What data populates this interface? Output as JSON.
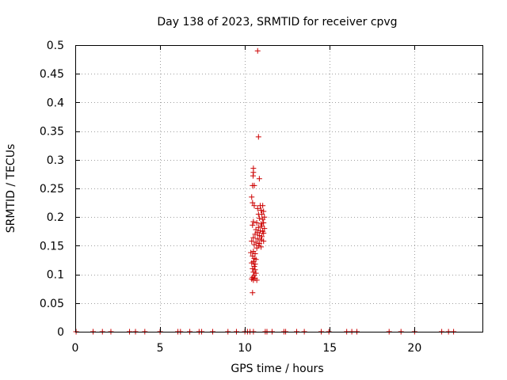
{
  "chart_data": {
    "type": "scatter",
    "title": "Day 138 of 2023, SRMTID for receiver cpvg",
    "xlabel": "GPS time / hours",
    "ylabel": "SRMTID / TECUs",
    "xlim": [
      0,
      24
    ],
    "ylim": [
      0,
      0.5
    ],
    "grid": true,
    "marker": "+",
    "color": "#cc0000",
    "x_ticks": [
      0,
      5,
      10,
      15,
      20
    ],
    "x_tick_labels": [
      "0",
      "5",
      "10",
      "15",
      "20"
    ],
    "y_ticks": [
      0,
      0.05,
      0.1,
      0.15,
      0.2,
      0.25,
      0.3,
      0.35,
      0.4,
      0.45,
      0.5
    ],
    "y_tick_labels": [
      "0",
      "0.05",
      "0.1",
      "0.15",
      "0.2",
      "0.25",
      "0.3",
      "0.35",
      "0.4",
      "0.45",
      "0.5"
    ],
    "series": [
      {
        "name": "SRMTID",
        "points": [
          [
            0.05,
            0
          ],
          [
            1.05,
            0
          ],
          [
            1.6,
            0
          ],
          [
            2.1,
            0
          ],
          [
            3.2,
            0
          ],
          [
            3.55,
            0
          ],
          [
            4.1,
            0
          ],
          [
            5.0,
            0
          ],
          [
            6.05,
            0
          ],
          [
            6.2,
            0
          ],
          [
            6.75,
            0
          ],
          [
            7.3,
            0
          ],
          [
            7.45,
            0
          ],
          [
            8.1,
            0
          ],
          [
            9.0,
            0
          ],
          [
            9.5,
            0
          ],
          [
            10.0,
            0
          ],
          [
            10.15,
            0
          ],
          [
            10.3,
            0
          ],
          [
            10.5,
            0
          ],
          [
            11.2,
            0
          ],
          [
            11.3,
            0
          ],
          [
            11.6,
            0
          ],
          [
            12.3,
            0
          ],
          [
            12.4,
            0
          ],
          [
            13.05,
            0
          ],
          [
            13.5,
            0
          ],
          [
            14.5,
            0
          ],
          [
            14.95,
            0
          ],
          [
            16.0,
            0
          ],
          [
            16.3,
            0
          ],
          [
            16.6,
            0
          ],
          [
            18.5,
            0
          ],
          [
            19.2,
            0
          ],
          [
            20.0,
            0
          ],
          [
            21.6,
            0
          ],
          [
            22.0,
            0
          ],
          [
            22.3,
            0
          ],
          [
            10.75,
            0.49
          ],
          [
            10.8,
            0.34
          ],
          [
            10.5,
            0.285
          ],
          [
            10.5,
            0.278
          ],
          [
            10.48,
            0.272
          ],
          [
            10.85,
            0.267
          ],
          [
            10.45,
            0.255
          ],
          [
            10.55,
            0.255
          ],
          [
            10.4,
            0.235
          ],
          [
            10.45,
            0.225
          ],
          [
            10.55,
            0.22
          ],
          [
            10.9,
            0.22
          ],
          [
            10.75,
            0.215
          ],
          [
            11.05,
            0.22
          ],
          [
            10.95,
            0.212
          ],
          [
            11.1,
            0.21
          ],
          [
            10.8,
            0.205
          ],
          [
            11.0,
            0.205
          ],
          [
            11.15,
            0.2
          ],
          [
            10.85,
            0.198
          ],
          [
            11.05,
            0.196
          ],
          [
            10.5,
            0.192
          ],
          [
            10.7,
            0.19
          ],
          [
            11.1,
            0.19
          ],
          [
            10.95,
            0.188
          ],
          [
            10.45,
            0.186
          ],
          [
            11.0,
            0.184
          ],
          [
            10.8,
            0.182
          ],
          [
            11.15,
            0.18
          ],
          [
            10.65,
            0.178
          ],
          [
            10.9,
            0.176
          ],
          [
            11.05,
            0.175
          ],
          [
            10.75,
            0.173
          ],
          [
            11.1,
            0.172
          ],
          [
            10.6,
            0.17
          ],
          [
            10.85,
            0.168
          ],
          [
            11.0,
            0.166
          ],
          [
            10.5,
            0.164
          ],
          [
            10.75,
            0.162
          ],
          [
            10.95,
            0.16
          ],
          [
            11.1,
            0.158
          ],
          [
            10.4,
            0.158
          ],
          [
            10.65,
            0.156
          ],
          [
            10.85,
            0.154
          ],
          [
            10.55,
            0.152
          ],
          [
            10.8,
            0.15
          ],
          [
            10.95,
            0.148
          ],
          [
            10.7,
            0.146
          ],
          [
            10.5,
            0.14
          ],
          [
            10.35,
            0.138
          ],
          [
            10.6,
            0.136
          ],
          [
            10.45,
            0.132
          ],
          [
            10.55,
            0.128
          ],
          [
            10.65,
            0.126
          ],
          [
            10.5,
            0.122
          ],
          [
            10.4,
            0.12
          ],
          [
            10.6,
            0.118
          ],
          [
            10.55,
            0.114
          ],
          [
            10.45,
            0.11
          ],
          [
            10.6,
            0.108
          ],
          [
            10.5,
            0.104
          ],
          [
            10.65,
            0.102
          ],
          [
            10.55,
            0.098
          ],
          [
            10.45,
            0.095
          ],
          [
            10.6,
            0.093
          ],
          [
            10.5,
            0.09
          ],
          [
            10.7,
            0.09
          ],
          [
            10.4,
            0.092
          ],
          [
            10.45,
            0.068
          ]
        ]
      }
    ]
  }
}
